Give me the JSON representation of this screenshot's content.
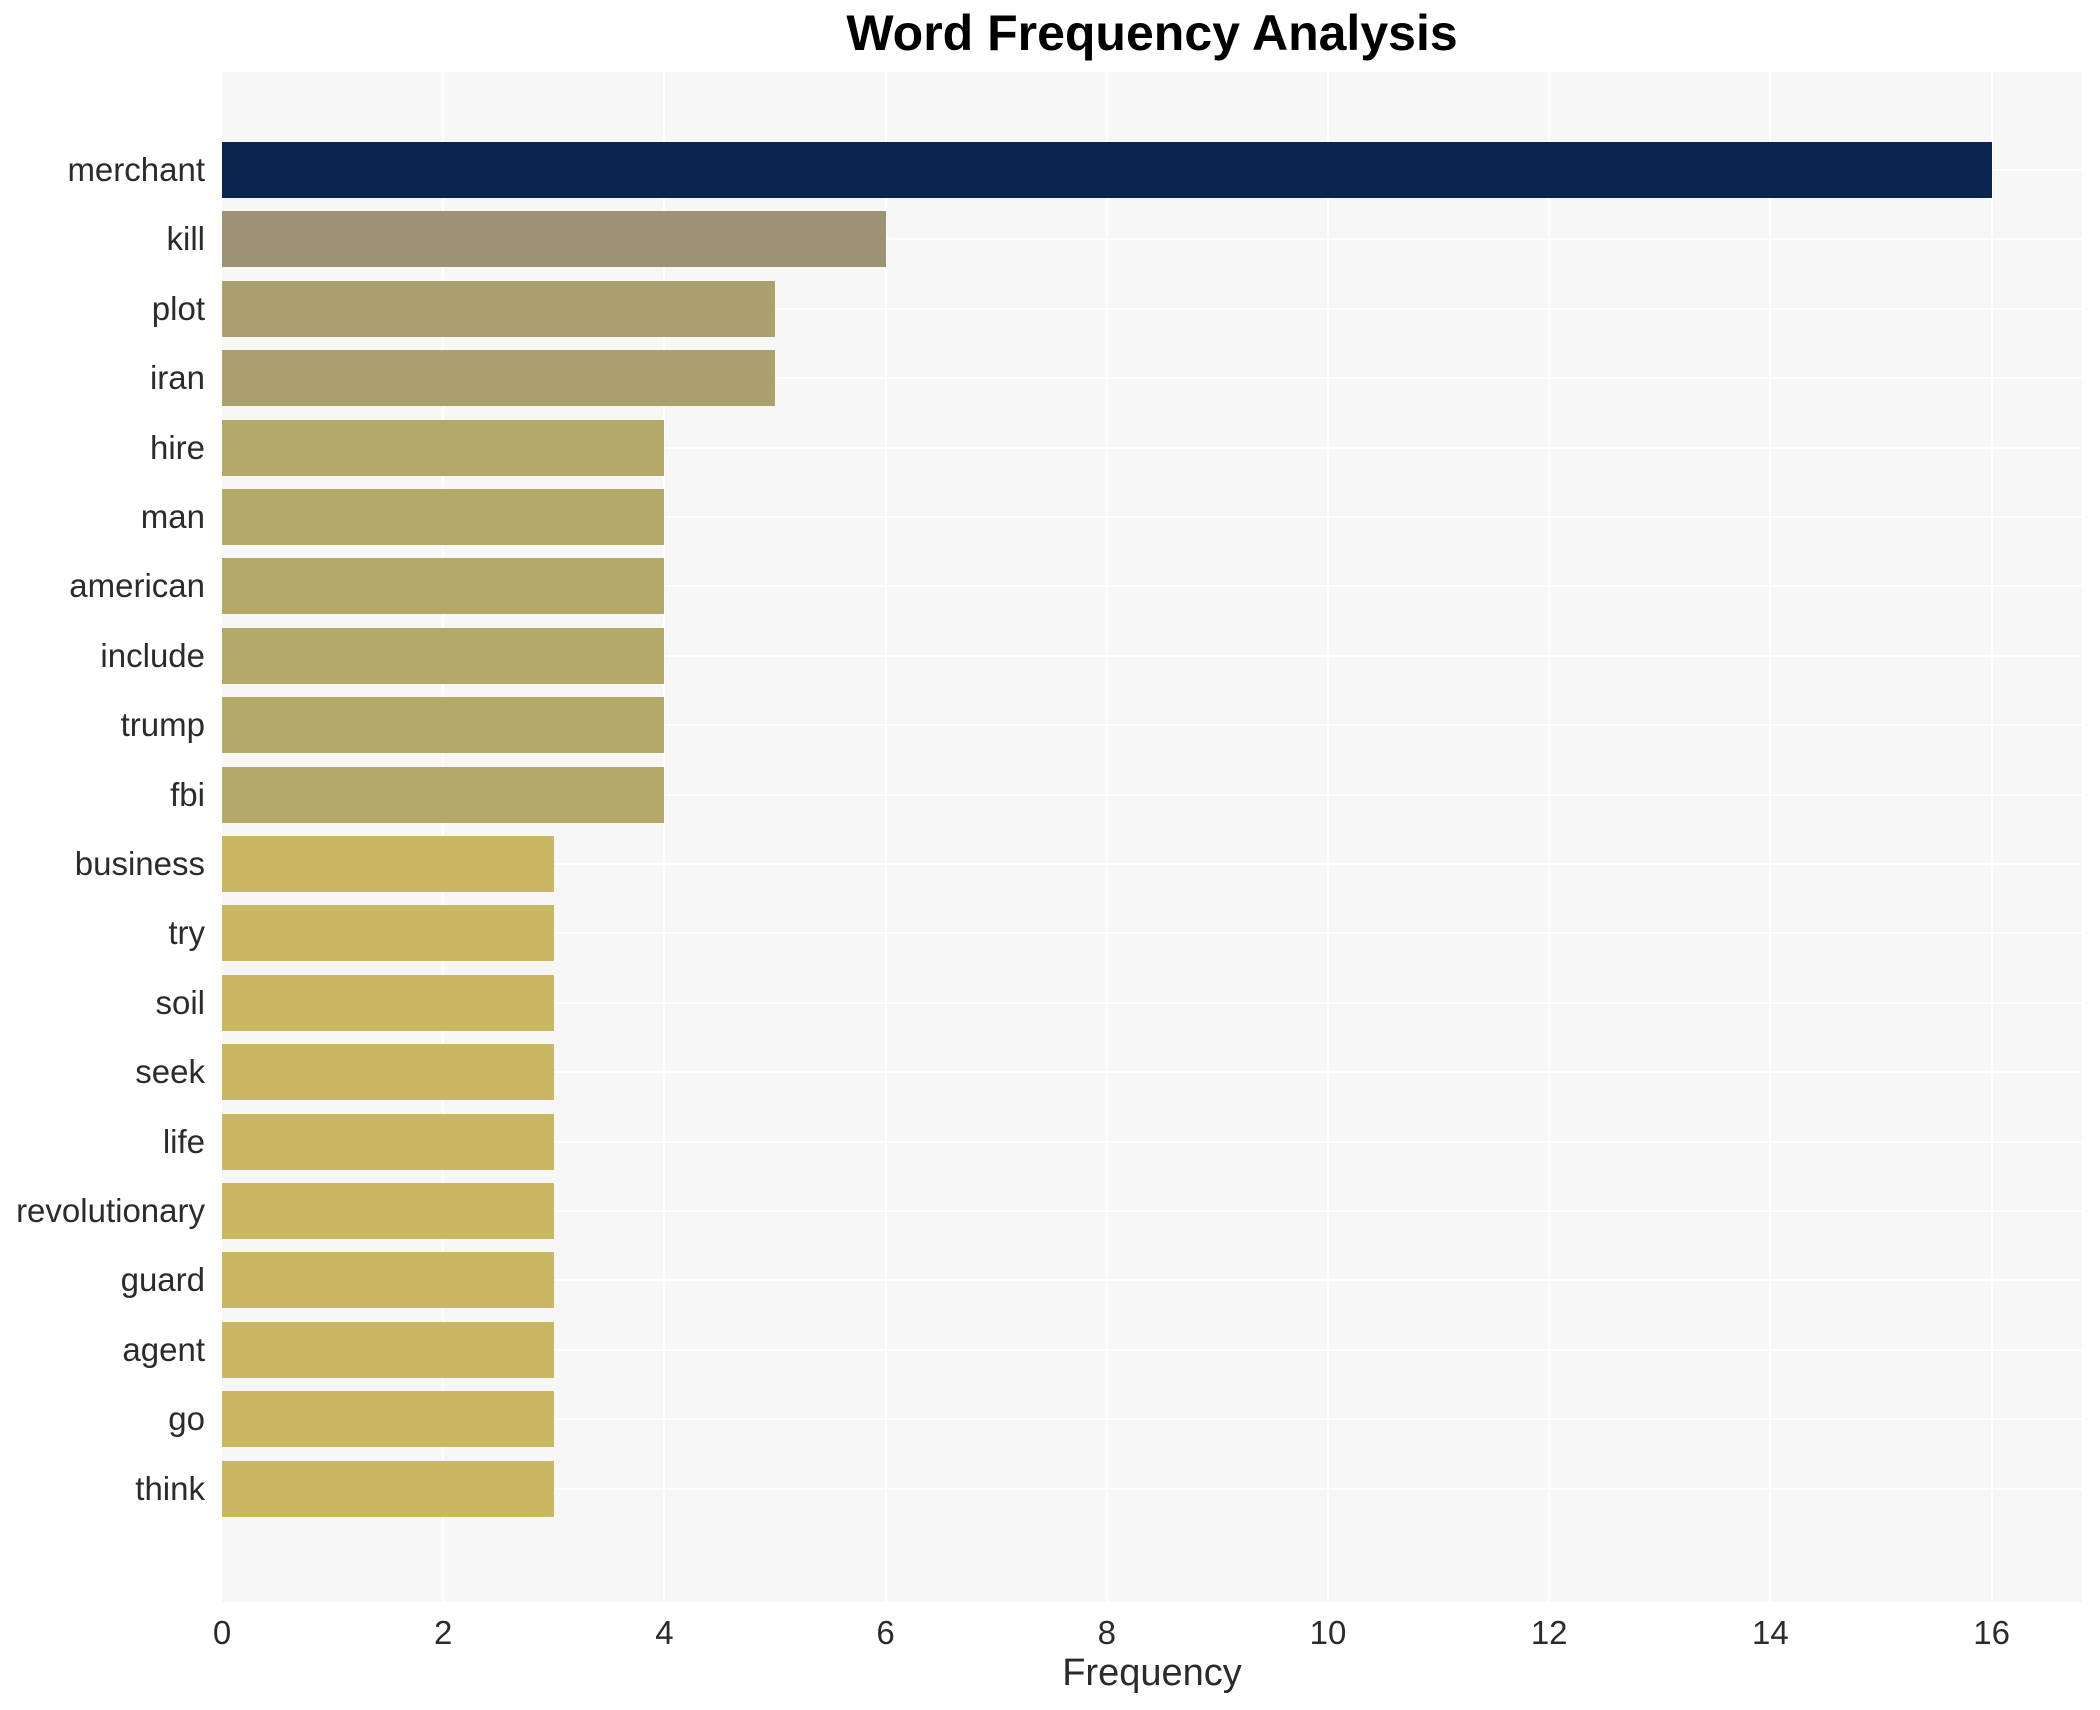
{
  "chart_data": {
    "type": "bar",
    "orientation": "horizontal",
    "title": "Word Frequency Analysis",
    "xlabel": "Frequency",
    "ylabel": "",
    "categories": [
      "merchant",
      "kill",
      "plot",
      "iran",
      "hire",
      "man",
      "american",
      "include",
      "trump",
      "fbi",
      "business",
      "try",
      "soil",
      "seek",
      "life",
      "revolutionary",
      "guard",
      "agent",
      "go",
      "think"
    ],
    "values": [
      16,
      6,
      5,
      5,
      4,
      4,
      4,
      4,
      4,
      4,
      3,
      3,
      3,
      3,
      3,
      3,
      3,
      3,
      3,
      3
    ],
    "bar_colors": [
      "#0b2450",
      "#9d9374",
      "#aca06f",
      "#aca06f",
      "#b4a969",
      "#b4a969",
      "#b4a969",
      "#b4a969",
      "#b4a969",
      "#b4a969",
      "#c9b861",
      "#c9b861",
      "#c9b861",
      "#c9b861",
      "#c9b861",
      "#c9b861",
      "#c9b861",
      "#c9b861",
      "#c9b861",
      "#c9b861"
    ],
    "xticks": [
      0,
      2,
      4,
      6,
      8,
      10,
      12,
      14,
      16
    ],
    "xlim": [
      0,
      16.82
    ],
    "grid": true,
    "legend_position": "none",
    "colors": {
      "panel_bg": "#f7f7f7",
      "grid": "#ffffff",
      "tick_text": "#2b2b2b",
      "title_text": "#000000"
    }
  }
}
